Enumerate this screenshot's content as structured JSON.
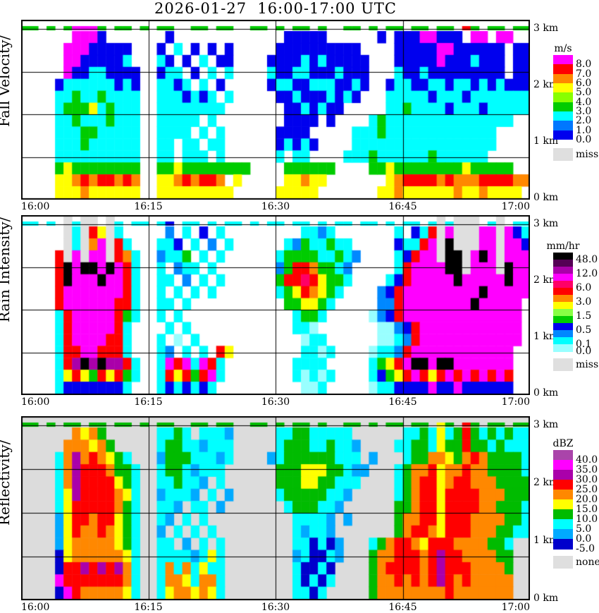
{
  "title": "2026-01-27  16:00-17:00 UTC",
  "x_tick_labels": [
    "16:00",
    "16:15",
    "16:30",
    "16:45",
    "17:00"
  ],
  "y_axis_labels": [
    "3 km",
    "2 km",
    "1 km",
    "0 km"
  ],
  "chart_data": [
    {
      "type": "heatmap",
      "ylabel": "Fall Velocity/",
      "legend": {
        "title": "m/s",
        "band_colors_top_to_bottom": [
          "#FF00FF",
          "#FF0000",
          "#FF8800",
          "#FFFF00",
          "#88FF00",
          "#00CC00",
          "#00FFFF",
          "#0077FF",
          "#0000EE"
        ],
        "labels": [
          {
            "t": "8.0",
            "b": 1
          },
          {
            "t": "7.0",
            "b": 2
          },
          {
            "t": "6.0",
            "b": 3
          },
          {
            "t": "5.0",
            "b": 4
          },
          {
            "t": "4.0",
            "b": 5
          },
          {
            "t": "3.0",
            "b": 6
          },
          {
            "t": "2.0",
            "b": 7
          },
          {
            "t": "1.0",
            "b": 8
          },
          {
            "t": "0.0",
            "b": 9
          }
        ],
        "no_data_label": "miss"
      },
      "x_range": [
        "16:00",
        "17:00"
      ],
      "height_range_km": [
        0,
        3.1
      ],
      "grid_encoding": "60 columns = 1 minute each (16:00-17:00); 15 rows top(3.1km)->bottom(0km); chars 1-9 map to velocity color bands (1=0-1 m/s ... 9=>8 m/s), '.'=no echo, 'x'=missing",
      "palette": {
        "1": "#0000EE",
        "2": "#0077FF",
        "3": "#00FFFF",
        "4": "#00CC00",
        "5": "#88FF00",
        "6": "#FFFF00",
        "7": "#FF8800",
        "8": "#FF0000",
        "9": "#FF00FF"
      },
      "background": "#FFFFFF",
      "miss_color": "#DFDFDF",
      "grid": [
        "44.4.49994.44.4.44..44.44..44.4.44.4..44.4.44.44.44.84.44.44",
        "......9991.......1.............11111......1.11199111.99.99",
        ".....99911111...1.3.1.1.1.....1111111111....1111199111111.11",
        ".....99111113...31.1.3.11....111131311111...1111191113111.11",
        ".....911331111..133.1.3.3....311331113111...3113111111111.11",
        "....1333333131..3313.3.1.....133113331131..13311331331313111",
        "....3343343333..3331313.3.....1131113131...33333133313333333",
        "....3444634333..33333333.......1131311.....33433331333133333",
        "....3343334333..33333.3........1111.1....34333333333333333",
        "....3334433333..3333.3.3......1111.....33343333333333333",
        "....3334333333..33.33.33......13131....33333333333333333",
        "....3333333333..33.333.3......3.33....33343333334333333",
        "....4644444444..44644444444....444444....44644444444644444",
        "....6678788787..66787887 6.....66766.......67888878777888877",
        "....6667666666..666666666.....66666.......66766666676676666"
      ]
    },
    {
      "type": "heatmap",
      "ylabel": "Rain Intensity/",
      "legend": {
        "title": "mm/hr",
        "band_colors_top_to_bottom": [
          "#000000",
          "#550055",
          "#AA00AA",
          "#FF00FF",
          "#FF0066",
          "#FF0000",
          "#FF8800",
          "#FFFF00",
          "#88FF44",
          "#00CC00",
          "#0000EE",
          "#0088FF",
          "#00FFFF",
          "#99FFFF"
        ],
        "labels": [
          {
            "t": "48.0",
            "b": 1
          },
          {
            "t": "12.0",
            "b": 3
          },
          {
            "t": "6.0",
            "b": 5
          },
          {
            "t": "3.0",
            "b": 7
          },
          {
            "t": "1.5",
            "b": 9
          },
          {
            "t": "0.5",
            "b": 11
          },
          {
            "t": "0.1",
            "b": 13
          },
          {
            "t": "0.0",
            "b": 14
          }
        ],
        "no_data_label": "miss"
      },
      "x_range": [
        "16:00",
        "17:00"
      ],
      "height_range_km": [
        0,
        3.1
      ],
      "grid_encoding": "60 columns = 1 minute each; 15 rows top->bottom; chars 1-9,a-e map to rain-rate color bands (1=0-0.1 mm/hr ... e=>48 mm/hr), '.'=no echo, 'x'=missing",
      "palette": {
        "1": "#99FFFF",
        "2": "#00FFFF",
        "3": "#0088FF",
        "4": "#0000EE",
        "5": "#00CC00",
        "6": "#88FF44",
        "7": "#FFFF00",
        "8": "#FF8800",
        "9": "#FF0000",
        "a": "#FF0066",
        "b": "#FF00FF",
        "c": "#AA00AA",
        "d": "#550055",
        "e": "#000000"
      },
      "background": "#FFFFFF",
      "miss_color": "#DFDFDF",
      "grid": [
        "22.2.x2xx.x2.22.24.22.2.22.2.22.22.2.22.22.2.22.2x2xxx.2x.22",
        ".....x2x97x2.....3.2.4.2.........2232.......2.429xbxxxbbxb42",
        ".....x2x8bx92...224.2.3.2......23522522.....4229bxexxxbbxbb4",
        "....9xbxbbx982..3225.2.2......2555522523....249bbxeexbebxbbb",
        "....9ebeebeb92..2.322.2.......359985523.....29bbbbeexbbbxebb",
        "....9ebbbebb92..22.3.2.2......599a97552....249bbbbbebbbbbebb",
        "....9bbbbbbb92..2.2.2.2.......25798752....349bbbbbbbbbebbbbb",
        "....9bbbbbb992..22.2...........557752.....339bbbbbbbbebbbbb",
        "....29bbbbb952..2.2.............2552.....1349bbbbbbbbbbbbbb",
        "....29bbbbb92....2.2............221.......11349bbbbbbbbbbbb",
        "....29bbbb992...2.1.2............122......11239bbbbbbbbbbbb",
        "....299bb9992...23.2.2.97........2212....12239bbbbbbbbbbbb",
        "....29cececc92..2b9b2b92........2222.....2579beebeebbbbbbb",
        "....2797597952..297959b2........21212....24579b979b9b9b9b9",
        "....244444442...2424242..........112.....1224444b44b444444"
      ]
    },
    {
      "type": "heatmap",
      "ylabel": "Reflectivity/",
      "legend": {
        "title": "dBZ",
        "band_colors_top_to_bottom": [
          "#AA44AA",
          "#FF00FF",
          "#AA00AA",
          "#FF0000",
          "#FF8800",
          "#FFFF00",
          "#00BB00",
          "#00FFFF",
          "#00AAFF",
          "#0000CC"
        ],
        "labels": [
          {
            "t": "40.0",
            "b": 1
          },
          {
            "t": "35.0",
            "b": 2
          },
          {
            "t": "30.0",
            "b": 3
          },
          {
            "t": "25.0",
            "b": 4
          },
          {
            "t": "20.0",
            "b": 5
          },
          {
            "t": "15.0",
            "b": 6
          },
          {
            "t": "10.0",
            "b": 7
          },
          {
            "t": "5.0",
            "b": 8
          },
          {
            "t": "0.0",
            "b": 9
          },
          {
            "t": "-5.0",
            "b": 10
          }
        ],
        "no_data_label": "none"
      },
      "x_range": [
        "16:00",
        "17:00"
      ],
      "height_range_km": [
        0,
        3.1
      ],
      "grid_encoding": "60 columns = 1 minute each; 15 rows top->bottom; chars 1-9,a map to reflectivity color bands (1=-5..0 dBZ ... a=>40 dBZ), '.'=none (grey background)",
      "palette": {
        "1": "#0000CC",
        "2": "#00AAFF",
        "3": "#00FFFF",
        "4": "#00BB00",
        "5": "#FFFF00",
        "6": "#FF8800",
        "7": "#FF0000",
        "8": "#AA00AA",
        "9": "#FF00FF",
        "a": "#AA44AA"
      },
      "background": "#DCDCDC",
      "miss_color": "#DFDFDF",
      "grid": [
        "44.4.44.44.44.4.44..44.44..44.4.44.4..44.4.44.44.54.74.44.44",
        "......6564......3343.3332.....334433333......334353474343433",
        ".....666564.....344332333.....3444334332....3344354474434333",
        "....368676543...244433323....23444444333 2...3446654676444433",
        "....3687776443..34432333......44455544322...3466756676644443",
        "....3687777543..334332.3......4445544333....3467756776664444",
        "....3587777653..23332.3.2.....344444332.....3467757777666444",
        "....3577777643..332.33.2.......3444332......4467757777664443",
        "....2577677543..32.3.3..........33332.2.....4667757776666443",
        "....2576676543..2.3.3.3.........32332.......4677657776664433",
        "....2566666543..33.2.3.3........331312...34677657776666443",
        "....1566666653..33332353........231132...46677767877666644",
        "....1778787863..36363533........31131....46777767877766664",
        "....9777777763..36653663........31313....46676767876766666",
        "....1976666653..35665653........3313.....46666666676666666"
      ]
    }
  ]
}
